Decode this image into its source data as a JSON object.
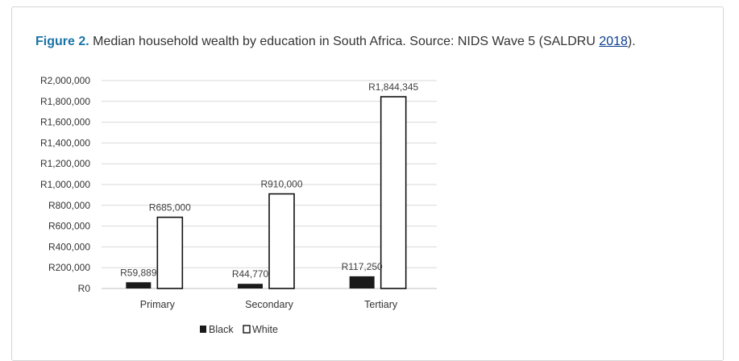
{
  "caption": {
    "figure_label": "Figure 2.",
    "text": " Median household wealth by education in South Africa. Source: NIDS Wave 5 (SALDRU ",
    "link_text": "2018",
    "suffix": ")."
  },
  "colors": {
    "black_series_fill": "#1a1a1a",
    "white_series_fill": "#ffffff",
    "white_series_stroke": "#111111",
    "grid": "#d9d9d9",
    "figure_label": "#1a73a8",
    "link": "#0b3d91"
  },
  "chart_data": {
    "type": "bar",
    "title": "",
    "xlabel": "",
    "ylabel": "",
    "categories": [
      "Primary",
      "Secondary",
      "Tertiary"
    ],
    "series": [
      {
        "name": "Black",
        "values": [
          59889,
          44770,
          117250
        ],
        "labels": [
          "R59,889",
          "R44,770",
          "R117,250"
        ]
      },
      {
        "name": "White",
        "values": [
          685000,
          910000,
          1844345
        ],
        "labels": [
          "R685,000",
          "R910,000",
          "R1,844,345"
        ]
      }
    ],
    "ylim": [
      0,
      2000000
    ],
    "y_ticks": [
      0,
      200000,
      400000,
      600000,
      800000,
      1000000,
      1200000,
      1400000,
      1600000,
      1800000,
      2000000
    ],
    "y_tick_labels": [
      "R0",
      "R200,000",
      "R400,000",
      "R600,000",
      "R800,000",
      "R1,000,000",
      "R1,200,000",
      "R1,400,000",
      "R1,600,000",
      "R1,800,000",
      "R2,000,000"
    ],
    "grid": true,
    "legend": "bottom"
  }
}
